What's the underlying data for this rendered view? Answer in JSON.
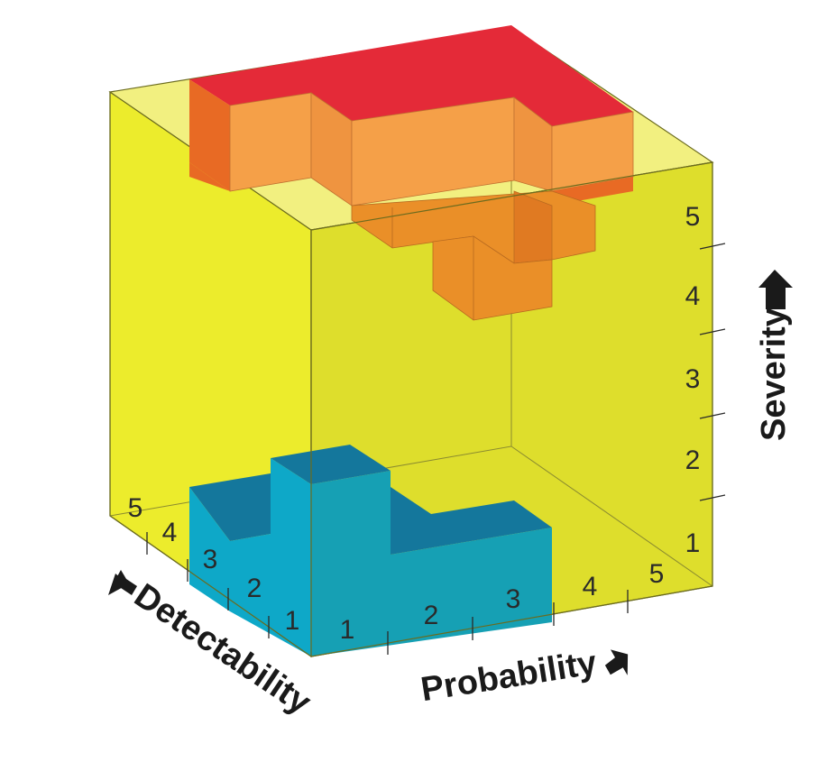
{
  "axes": {
    "severity": {
      "title": "Severity",
      "ticks": [
        "1",
        "2",
        "3",
        "4",
        "5"
      ]
    },
    "probability": {
      "title": "Probability",
      "ticks": [
        "1",
        "2",
        "3",
        "4",
        "5"
      ]
    },
    "detectability": {
      "title": "Detectability",
      "ticks": [
        "1",
        "2",
        "3",
        "4",
        "5"
      ]
    }
  },
  "colors": {
    "cube_left": "#ecec2c",
    "cube_front": "#dede2c",
    "cube_top": "#f2f080",
    "cube_edge": "#6b6b1e",
    "high_top": "#e42a38",
    "high_front": "#f5a048",
    "mid_front": "#ea8f28",
    "mid_side": "#e06a20",
    "low_top": "#14779c",
    "low_front": "#16a0b4",
    "low_side": "#0ea8c8",
    "arrow": "#1a1a1a"
  }
}
